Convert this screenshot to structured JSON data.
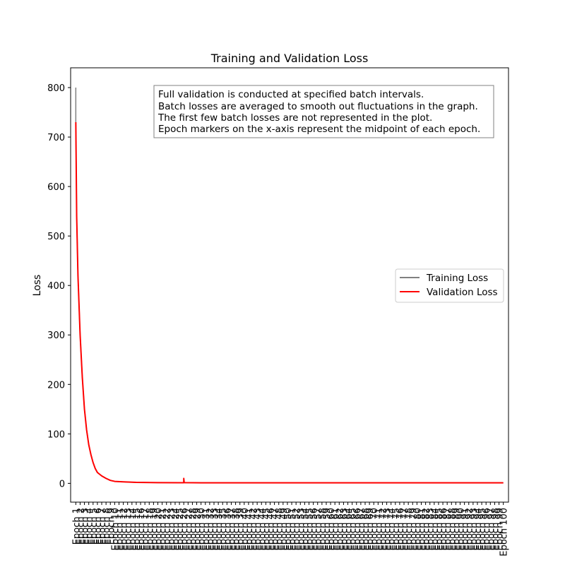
{
  "chart_data": {
    "type": "line",
    "title": "Training and Validation Loss",
    "xlabel": "",
    "ylabel": "Loss",
    "ylim": [
      -38,
      840
    ],
    "yticks": [
      0,
      100,
      200,
      300,
      400,
      500,
      600,
      700,
      800
    ],
    "grid": false,
    "legend_placement": "center-right",
    "x_tick_labels": [
      "Epoch 1",
      "Epoch 2",
      "Epoch 3",
      "Epoch 4",
      "Epoch 5",
      "Epoch 6",
      "Epoch 7",
      "Epoch 8",
      "Epoch 9",
      "Epoch 10",
      "Epoch 11",
      "Epoch 12",
      "Epoch 13",
      "Epoch 14",
      "Epoch 15",
      "Epoch 16",
      "Epoch 17",
      "Epoch 18",
      "Epoch 19",
      "Epoch 20",
      "Epoch 21",
      "Epoch 22",
      "Epoch 23",
      "Epoch 24",
      "Epoch 25",
      "Epoch 26",
      "Epoch 27",
      "Epoch 28",
      "Epoch 29",
      "Epoch 30",
      "Epoch 31",
      "Epoch 32",
      "Epoch 33",
      "Epoch 34",
      "Epoch 35",
      "Epoch 36",
      "Epoch 37",
      "Epoch 38",
      "Epoch 39",
      "Epoch 40",
      "Epoch 41",
      "Epoch 42",
      "Epoch 43",
      "Epoch 44",
      "Epoch 45",
      "Epoch 46",
      "Epoch 47",
      "Epoch 48",
      "Epoch 49",
      "Epoch 50",
      "Epoch 51",
      "Epoch 52",
      "Epoch 53",
      "Epoch 54",
      "Epoch 55",
      "Epoch 56",
      "Epoch 57",
      "Epoch 58",
      "Epoch 59",
      "Epoch 60",
      "Epoch 61",
      "Epoch 62",
      "Epoch 63",
      "Epoch 64",
      "Epoch 65",
      "Epoch 66",
      "Epoch 67",
      "Epoch 68",
      "Epoch 69",
      "Epoch 70",
      "Epoch 71",
      "Epoch 72",
      "Epoch 73",
      "Epoch 74",
      "Epoch 75",
      "Epoch 76",
      "Epoch 77",
      "Epoch 78",
      "Epoch 79",
      "Epoch 80",
      "Epoch 81",
      "Epoch 82",
      "Epoch 83",
      "Epoch 84",
      "Epoch 85",
      "Epoch 86",
      "Epoch 87",
      "Epoch 88",
      "Epoch 89",
      "Epoch 90",
      "Epoch 91",
      "Epoch 92",
      "Epoch 93",
      "Epoch 94",
      "Epoch 95",
      "Epoch 96",
      "Epoch 97",
      "Epoch 98",
      "Epoch 99",
      "Epoch 100"
    ],
    "annotation": [
      "Full validation is conducted at specified batch intervals.",
      "Batch losses are averaged to smooth out fluctuations in the graph.",
      "The first few batch losses are not represented in the plot.",
      "Epoch markers on the x-axis represent the midpoint of each epoch."
    ],
    "series": [
      {
        "name": "Training Loss",
        "color": "#808080",
        "points": [
          [
            1,
            800
          ],
          [
            1,
            720
          ],
          [
            1.2,
            540
          ],
          [
            1.5,
            420
          ],
          [
            2,
            300
          ],
          [
            2.5,
            215
          ],
          [
            3,
            150
          ],
          [
            3.5,
            108
          ],
          [
            4,
            78
          ],
          [
            4.5,
            58
          ],
          [
            5,
            42
          ],
          [
            5.5,
            30
          ],
          [
            6,
            22
          ],
          [
            7,
            15
          ],
          [
            8,
            10
          ],
          [
            9,
            6
          ],
          [
            10,
            4
          ],
          [
            12,
            3
          ],
          [
            15,
            2
          ],
          [
            20,
            1.5
          ],
          [
            25,
            1.2
          ],
          [
            26,
            1.2
          ],
          [
            26,
            6
          ],
          [
            26.1,
            1.5
          ],
          [
            30,
            1
          ],
          [
            40,
            1
          ],
          [
            50,
            1
          ],
          [
            60,
            1
          ],
          [
            70,
            1
          ],
          [
            80,
            1
          ],
          [
            90,
            1
          ],
          [
            100,
            1
          ]
        ]
      },
      {
        "name": "Validation Loss",
        "color": "#ff0000",
        "points": [
          [
            1,
            730
          ],
          [
            1.2,
            540
          ],
          [
            1.5,
            420
          ],
          [
            2,
            300
          ],
          [
            2.5,
            215
          ],
          [
            3,
            150
          ],
          [
            3.5,
            108
          ],
          [
            4,
            78
          ],
          [
            4.5,
            58
          ],
          [
            5,
            42
          ],
          [
            5.5,
            30
          ],
          [
            6,
            22
          ],
          [
            7,
            15
          ],
          [
            8,
            10
          ],
          [
            9,
            6
          ],
          [
            10,
            4
          ],
          [
            12,
            3
          ],
          [
            15,
            2
          ],
          [
            20,
            1.5
          ],
          [
            25,
            1.2
          ],
          [
            26,
            1.2
          ],
          [
            26,
            10
          ],
          [
            26.1,
            1.5
          ],
          [
            30,
            1
          ],
          [
            40,
            1
          ],
          [
            50,
            1
          ],
          [
            60,
            1
          ],
          [
            70,
            1
          ],
          [
            80,
            1
          ],
          [
            90,
            1
          ],
          [
            100,
            1
          ]
        ]
      }
    ]
  }
}
